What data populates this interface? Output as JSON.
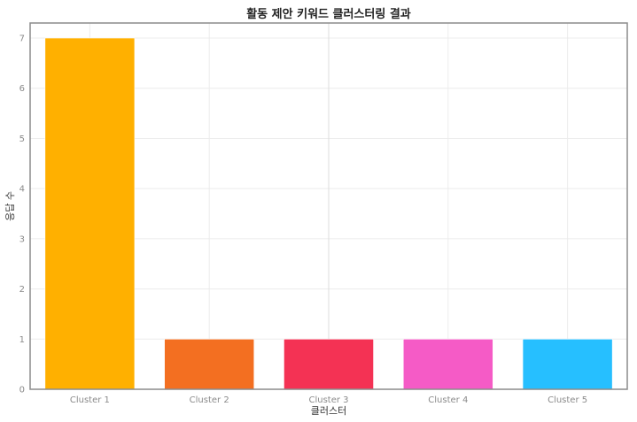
{
  "chart_data": {
    "type": "bar",
    "title": "활동 제안 키워드 클러스터링 결과",
    "xlabel": "클러스터",
    "ylabel": "응답 수",
    "categories": [
      "Cluster 1",
      "Cluster 2",
      "Cluster 3",
      "Cluster 4",
      "Cluster 5"
    ],
    "values": [
      7,
      1,
      1,
      1,
      1
    ],
    "colors": [
      "#FFB000",
      "#F36F21",
      "#F43254",
      "#F55BC6",
      "#26BFFF"
    ],
    "ylim": [
      0,
      7.3
    ],
    "yticks": [
      0,
      1,
      2,
      3,
      4,
      5,
      6,
      7
    ],
    "grid": true,
    "legend": "none"
  }
}
